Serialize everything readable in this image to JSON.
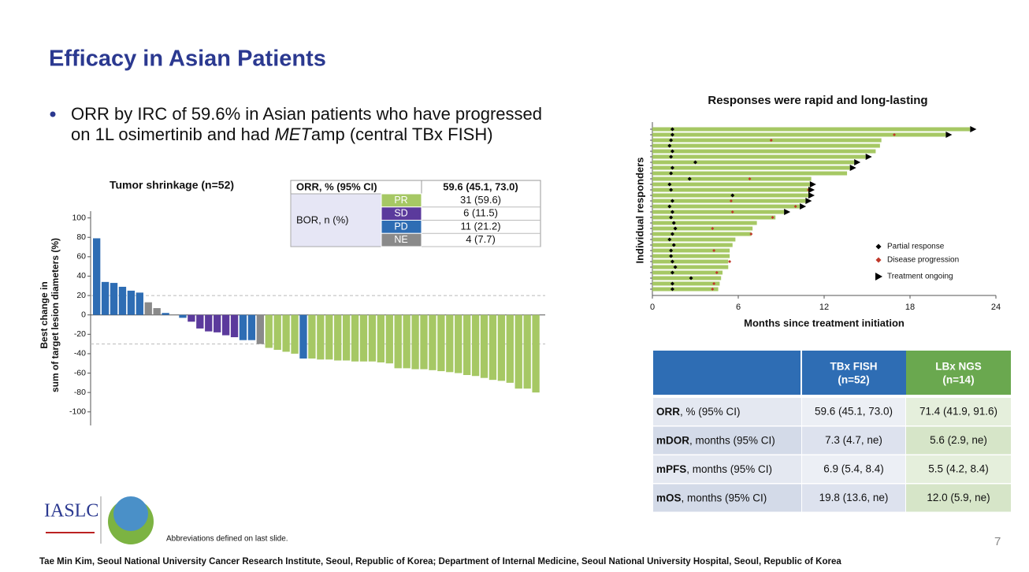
{
  "header": {
    "title": "Efficacy in Asian Patients"
  },
  "bullet": {
    "line1": "ORR by IRC of 59.6% in Asian patients who have progressed",
    "line2_start": "on 1L osimertinib and had ",
    "line2_italic": "MET",
    "line2_end": "amp (central TBx FISH)"
  },
  "orr_table": {
    "header": [
      "ORR, % (95% CI)",
      "59.6 (45.1, 73.0)"
    ],
    "group_label": "BOR, n (%)",
    "rows": [
      [
        "PR",
        "31 (59.6)"
      ],
      [
        "SD",
        "6 (11.5)"
      ],
      [
        "PD",
        "11 (21.2)"
      ],
      [
        "NE",
        "4 (7.7)"
      ]
    ],
    "row_colors": [
      "#a6c864",
      "#5b3a9c",
      "#2e6db4",
      "#8a8a8a"
    ]
  },
  "chart_data": [
    {
      "type": "bar",
      "title": "Tumor shrinkage (n=52)",
      "ylabel": [
        "Best change in",
        "sum of target lesion diameters (%)"
      ],
      "values": [
        79,
        34,
        33,
        29,
        25,
        23,
        13,
        7,
        2,
        0,
        -3,
        -7,
        -14,
        -17,
        -18,
        -21,
        -23,
        -26,
        -26,
        -30,
        -34,
        -36,
        -38,
        -40,
        -45,
        -45,
        -46,
        -46,
        -47,
        -47,
        -48,
        -48,
        -48,
        -49,
        -50,
        -55,
        -55,
        -56,
        -56,
        -57,
        -58,
        -59,
        -60,
        -62,
        -63,
        -65,
        -67,
        -68,
        -70,
        -76,
        -76,
        -80
      ],
      "colors": [
        "#2e6db4",
        "#2e6db4",
        "#2e6db4",
        "#2e6db4",
        "#2e6db4",
        "#2e6db4",
        "#8a8a8a",
        "#8a8a8a",
        "#2e6db4",
        "#8a8a8a",
        "#2e6db4",
        "#5b3a9c",
        "#5b3a9c",
        "#5b3a9c",
        "#5b3a9c",
        "#5b3a9c",
        "#5b3a9c",
        "#2e6db4",
        "#2e6db4",
        "#8a8a8a",
        "#a6c864",
        "#a6c864",
        "#a6c864",
        "#a6c864",
        "#2e6db4",
        "#a6c864",
        "#a6c864",
        "#a6c864",
        "#a6c864",
        "#a6c864",
        "#a6c864",
        "#a6c864",
        "#a6c864",
        "#a6c864",
        "#a6c864",
        "#a6c864",
        "#a6c864",
        "#a6c864",
        "#a6c864",
        "#a6c864",
        "#a6c864",
        "#a6c864",
        "#a6c864",
        "#a6c864",
        "#a6c864",
        "#a6c864",
        "#a6c864",
        "#a6c864",
        "#a6c864",
        "#a6c864",
        "#a6c864",
        "#a6c864"
      ],
      "ylim": [
        -114,
        107
      ],
      "yticks": [
        -100,
        -80,
        -60,
        -40,
        -20,
        0,
        20,
        40,
        60,
        80,
        100
      ],
      "reference_lines": [
        20,
        -30
      ]
    },
    {
      "type": "swimmer",
      "title": "Responses were rapid and long-lasting",
      "xlabel": "Months since treatment initiation",
      "ylabel": "Individual responders",
      "durations": [
        22.2,
        20.5,
        16.0,
        15.9,
        15.6,
        14.9,
        14.1,
        13.8,
        13.6,
        11.1,
        11.0,
        10.9,
        10.9,
        10.7,
        10.3,
        9.2,
        8.6,
        7.3,
        7.0,
        6.9,
        5.8,
        5.6,
        5.4,
        5.4,
        5.3,
        5.3,
        4.9,
        4.8,
        4.7,
        4.6
      ],
      "responses": [
        1.4,
        1.4,
        1.3,
        1.2,
        1.4,
        1.3,
        3.0,
        1.4,
        1.3,
        2.6,
        1.2,
        1.3,
        5.6,
        1.4,
        1.2,
        1.4,
        1.3,
        1.5,
        1.6,
        1.4,
        1.2,
        1.5,
        1.3,
        1.3,
        1.4,
        1.6,
        1.4,
        2.7,
        1.4,
        1.4
      ],
      "progressions": [
        null,
        16.9,
        8.3,
        null,
        null,
        null,
        null,
        null,
        null,
        6.8,
        null,
        10.9,
        null,
        5.5,
        10.0,
        5.6,
        8.4,
        null,
        4.2,
        6.9,
        null,
        null,
        4.3,
        null,
        5.4,
        null,
        4.5,
        null,
        4.3,
        4.2
      ],
      "ongoing": [
        true,
        true,
        false,
        false,
        false,
        true,
        true,
        true,
        false,
        false,
        true,
        true,
        true,
        true,
        true,
        true,
        false,
        false,
        false,
        false,
        false,
        false,
        false,
        false,
        false,
        false,
        false,
        false,
        false,
        false
      ],
      "legend": [
        "Partial response",
        "Disease progression",
        "Treatment ongoing"
      ],
      "color": "#a6c864",
      "response_color": "#000000",
      "progression_color": "#c0392b",
      "xlim": [
        0,
        24
      ],
      "xticks": [
        0,
        6,
        12,
        18,
        24
      ]
    }
  ],
  "efficacy_table": {
    "header": [
      [
        "TBx FISH",
        "(n=52)"
      ],
      [
        "LBx NGS",
        "(n=14)"
      ]
    ],
    "rows": [
      {
        "metric": "ORR",
        "unit": ", % (95% CI)",
        "values": [
          "59.6 (45.1, 73.0)",
          "71.4 (41.9, 91.6)"
        ]
      },
      {
        "metric": "mDOR",
        "unit": ", months (95% CI)",
        "values": [
          "7.3 (4.7, ne)",
          "5.6 (2.9, ne)"
        ]
      },
      {
        "metric": "mPFS",
        "unit": ", months (95% CI)",
        "values": [
          "6.9 (5.4, 8.4)",
          "5.5 (4.2, 8.4)"
        ]
      },
      {
        "metric": "mOS",
        "unit": ", months (95% CI)",
        "values": [
          "19.8 (13.6, ne)",
          "12.0 (5.9, ne)"
        ]
      }
    ]
  },
  "footer": {
    "logo": "IASLC",
    "abbreviations": "Abbreviations defined on last slide.",
    "page": 7,
    "affiliation": "Tae Min Kim, Seoul National University Cancer Research Institute, Seoul, Republic of Korea; Department of Internal Medicine, Seoul National University Hospital, Seoul, Republic of Korea"
  }
}
